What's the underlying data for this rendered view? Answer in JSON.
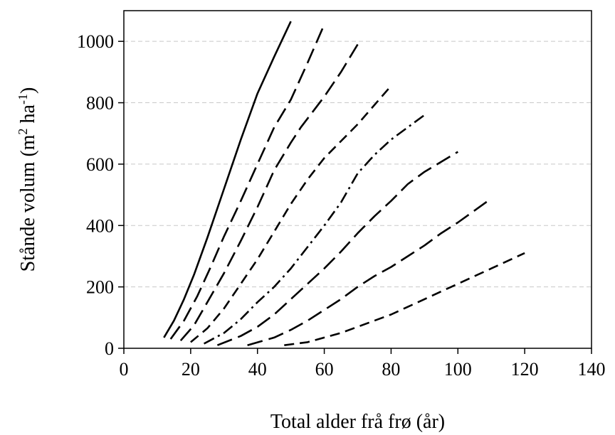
{
  "chart_data": {
    "type": "line",
    "title": "",
    "xlabel": "Total alder frå frø (år)",
    "ylabel": {
      "prefix": "Stånde volum (m",
      "sup1": "2",
      "mid": " ha",
      "sup2": "-1",
      "suffix": ")"
    },
    "xlim": [
      0,
      140
    ],
    "ylim": [
      0,
      1000
    ],
    "x_ticks": [
      0,
      20,
      40,
      60,
      80,
      100,
      120,
      140
    ],
    "y_ticks": [
      0,
      200,
      400,
      600,
      800,
      1000
    ],
    "grid": "horizontal dashed",
    "legend": "none",
    "series": [
      {
        "dash": "solid",
        "points": [
          [
            12,
            35
          ],
          [
            15,
            90
          ],
          [
            18,
            160
          ],
          [
            21,
            240
          ],
          [
            25,
            360
          ],
          [
            30,
            520
          ],
          [
            35,
            680
          ],
          [
            40,
            830
          ],
          [
            45,
            950
          ],
          [
            50,
            1065
          ]
        ]
      },
      {
        "dash": "long-dash",
        "points": [
          [
            14,
            30
          ],
          [
            18,
            90
          ],
          [
            22,
            170
          ],
          [
            26,
            265
          ],
          [
            30,
            365
          ],
          [
            35,
            480
          ],
          [
            40,
            600
          ],
          [
            45,
            720
          ],
          [
            50,
            810
          ],
          [
            55,
            930
          ],
          [
            60,
            1055
          ]
        ]
      },
      {
        "dash": "long-dash",
        "points": [
          [
            17,
            25
          ],
          [
            21,
            75
          ],
          [
            25,
            150
          ],
          [
            30,
            245
          ],
          [
            35,
            350
          ],
          [
            40,
            460
          ],
          [
            45,
            580
          ],
          [
            50,
            670
          ],
          [
            53,
            720
          ],
          [
            60,
            820
          ],
          [
            65,
            900
          ],
          [
            70,
            990
          ]
        ]
      },
      {
        "dash": "dash",
        "points": [
          [
            20,
            20
          ],
          [
            25,
            65
          ],
          [
            30,
            130
          ],
          [
            35,
            210
          ],
          [
            40,
            290
          ],
          [
            45,
            380
          ],
          [
            50,
            470
          ],
          [
            55,
            550
          ],
          [
            60,
            620
          ],
          [
            70,
            730
          ],
          [
            80,
            855
          ]
        ]
      },
      {
        "dash": "dash-dot",
        "points": [
          [
            24,
            15
          ],
          [
            30,
            50
          ],
          [
            35,
            95
          ],
          [
            40,
            150
          ],
          [
            45,
            200
          ],
          [
            50,
            260
          ],
          [
            55,
            330
          ],
          [
            60,
            400
          ],
          [
            65,
            475
          ],
          [
            70,
            570
          ],
          [
            75,
            630
          ],
          [
            80,
            680
          ],
          [
            90,
            760
          ]
        ]
      },
      {
        "dash": "long-dash",
        "points": [
          [
            28,
            10
          ],
          [
            35,
            40
          ],
          [
            40,
            70
          ],
          [
            45,
            110
          ],
          [
            50,
            160
          ],
          [
            55,
            210
          ],
          [
            60,
            260
          ],
          [
            65,
            315
          ],
          [
            70,
            375
          ],
          [
            75,
            430
          ],
          [
            80,
            480
          ],
          [
            85,
            535
          ],
          [
            90,
            575
          ],
          [
            100,
            640
          ]
        ]
      },
      {
        "dash": "long-dash",
        "points": [
          [
            37,
            10
          ],
          [
            45,
            35
          ],
          [
            50,
            60
          ],
          [
            55,
            90
          ],
          [
            60,
            125
          ],
          [
            65,
            160
          ],
          [
            70,
            200
          ],
          [
            75,
            235
          ],
          [
            80,
            265
          ],
          [
            85,
            300
          ],
          [
            90,
            335
          ],
          [
            95,
            375
          ],
          [
            100,
            410
          ],
          [
            109,
            480
          ]
        ]
      },
      {
        "dash": "dash",
        "points": [
          [
            48,
            10
          ],
          [
            55,
            20
          ],
          [
            60,
            35
          ],
          [
            65,
            50
          ],
          [
            70,
            70
          ],
          [
            75,
            90
          ],
          [
            80,
            110
          ],
          [
            85,
            135
          ],
          [
            90,
            160
          ],
          [
            95,
            185
          ],
          [
            100,
            210
          ],
          [
            110,
            260
          ],
          [
            120,
            310
          ]
        ]
      }
    ]
  }
}
